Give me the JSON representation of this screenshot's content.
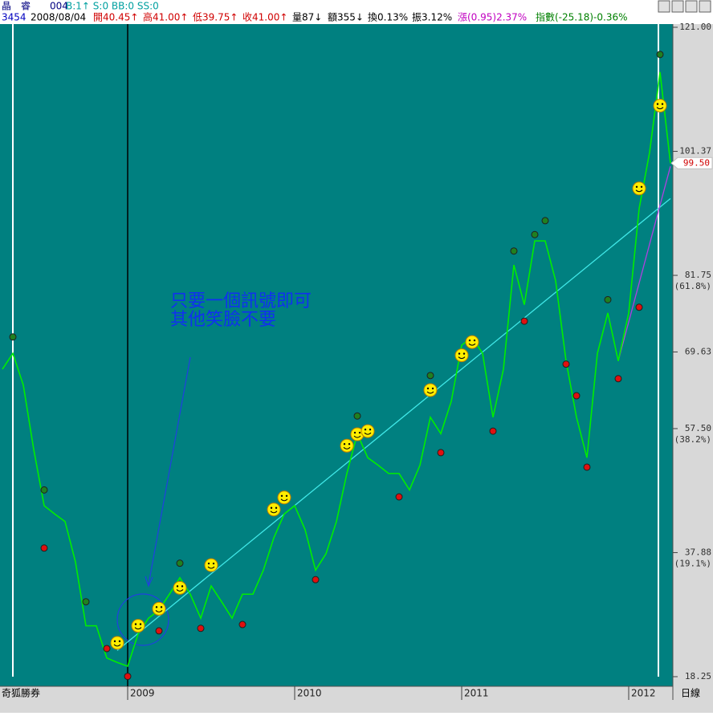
{
  "header": {
    "name": "晶　睿",
    "code": "004",
    "signals": "B:1↑ S:0 BB:0 SS:0",
    "stock_id": "3454",
    "date": "2008/08/04",
    "open": "開40.45↑",
    "high": "高41.00↑",
    "low": "低39.75↑",
    "close": "收41.00↑",
    "volume": "量87↓",
    "amount": "額355↓",
    "turnover": "換0.13%",
    "amplitude": "振3.12%",
    "change": "漲(0.95)2.37%",
    "index": "指數(-25.18)-0.36%"
  },
  "chart_data": {
    "type": "line",
    "categories": [
      null,
      null,
      null,
      null,
      null,
      null,
      null,
      null,
      null,
      null,
      null,
      null,
      "2009",
      null,
      null,
      null,
      null,
      null,
      null,
      null,
      null,
      null,
      null,
      null,
      null,
      null,
      null,
      null,
      "2010",
      null,
      null,
      null,
      null,
      null,
      null,
      null,
      null,
      null,
      null,
      null,
      null,
      null,
      null,
      null,
      "2011",
      null,
      null,
      null,
      null,
      null,
      null,
      null,
      null,
      null,
      null,
      null,
      null,
      null,
      null,
      null,
      "2012",
      null,
      null,
      null,
      null
    ],
    "series": [
      {
        "color": "#00ee00",
        "values": [
          66.9,
          69.4,
          64.4,
          54.2,
          45.3,
          44.0,
          42.8,
          36.4,
          26.3,
          26.3,
          21.2,
          20.5,
          19.9,
          25.0,
          27.5,
          28.8,
          31.3,
          33.9,
          31.3,
          27.5,
          32.6,
          30.1,
          27.5,
          31.3,
          31.3,
          35.1,
          40.2,
          44.0,
          45.3,
          41.5,
          35.1,
          37.7,
          42.8,
          50.4,
          56.7,
          52.9,
          51.7,
          50.4,
          50.4,
          47.8,
          51.7,
          59.3,
          56.7,
          61.8,
          70.7,
          72.0,
          69.4,
          59.3,
          66.9,
          83.4,
          77.1,
          87.2,
          87.2,
          80.9,
          68.2,
          59.3,
          52.9,
          69.4,
          75.8,
          68.2,
          75.8,
          92.3,
          101.2,
          113.9,
          99.5
        ]
      }
    ],
    "ylim": [
      18.25,
      121
    ],
    "yticks": [
      {
        "value": 121,
        "label": "121.00"
      },
      101.37,
      81.75,
      69.63,
      {
        "value": 57.5,
        "label": "57.50"
      },
      37.88,
      18.25
    ],
    "fib_levels": [
      {
        "value": 81.75,
        "label": "(61.8%)"
      },
      {
        "value": 57.5,
        "label": "(38.2%)"
      },
      {
        "value": 37.88,
        "label": "(19.1%)"
      }
    ],
    "last_price": {
      "value": 99.5,
      "label": "99.50"
    },
    "markers": {
      "smiley": [
        null,
        null,
        null,
        null,
        null,
        null,
        null,
        null,
        null,
        null,
        null,
        23.6,
        null,
        26.3,
        null,
        29.0,
        null,
        32.3,
        null,
        null,
        35.9,
        null,
        null,
        null,
        null,
        null,
        44.7,
        46.6,
        null,
        null,
        null,
        null,
        null,
        54.8,
        56.6,
        57.1,
        null,
        null,
        null,
        null,
        null,
        63.6,
        null,
        null,
        69.1,
        71.2,
        null,
        null,
        null,
        null,
        null,
        null,
        null,
        null,
        null,
        null,
        null,
        null,
        null,
        null,
        null,
        95.5,
        null,
        108.6,
        null
      ],
      "top": [
        null,
        72.0,
        null,
        null,
        47.8,
        null,
        null,
        null,
        30.1,
        null,
        null,
        null,
        null,
        null,
        null,
        null,
        null,
        36.2,
        null,
        null,
        null,
        null,
        null,
        null,
        null,
        null,
        null,
        null,
        null,
        null,
        null,
        null,
        null,
        null,
        59.5,
        null,
        null,
        null,
        null,
        null,
        null,
        65.9,
        null,
        null,
        null,
        null,
        null,
        null,
        null,
        85.6,
        null,
        88.2,
        90.4,
        null,
        null,
        null,
        null,
        null,
        77.9,
        null,
        null,
        null,
        null,
        116.7,
        null
      ],
      "bottom": [
        null,
        null,
        null,
        null,
        38.6,
        null,
        null,
        null,
        null,
        null,
        22.7,
        null,
        18.3,
        null,
        null,
        25.5,
        null,
        null,
        null,
        25.9,
        null,
        null,
        null,
        26.5,
        null,
        null,
        null,
        null,
        null,
        null,
        33.6,
        null,
        null,
        null,
        null,
        null,
        null,
        null,
        46.7,
        null,
        null,
        null,
        53.7,
        null,
        null,
        null,
        null,
        57.1,
        null,
        null,
        74.5,
        null,
        null,
        null,
        67.7,
        62.7,
        51.4,
        null,
        null,
        65.4,
        null,
        76.7,
        null,
        null,
        null
      ]
    },
    "trend_lines": [
      {
        "color": "#40e8e8",
        "start_index": 11,
        "start_value": 22.4,
        "end_index": 64,
        "end_value": 93.9
      },
      {
        "color": "#b040e0",
        "start_index": 59,
        "start_value": 68.2,
        "end_index": 64,
        "end_value": 99.0
      }
    ],
    "annotation": [
      "只要一個訊號即可",
      "其他笑臉不要"
    ],
    "brand": "奇狐勝券",
    "period": "日線"
  }
}
